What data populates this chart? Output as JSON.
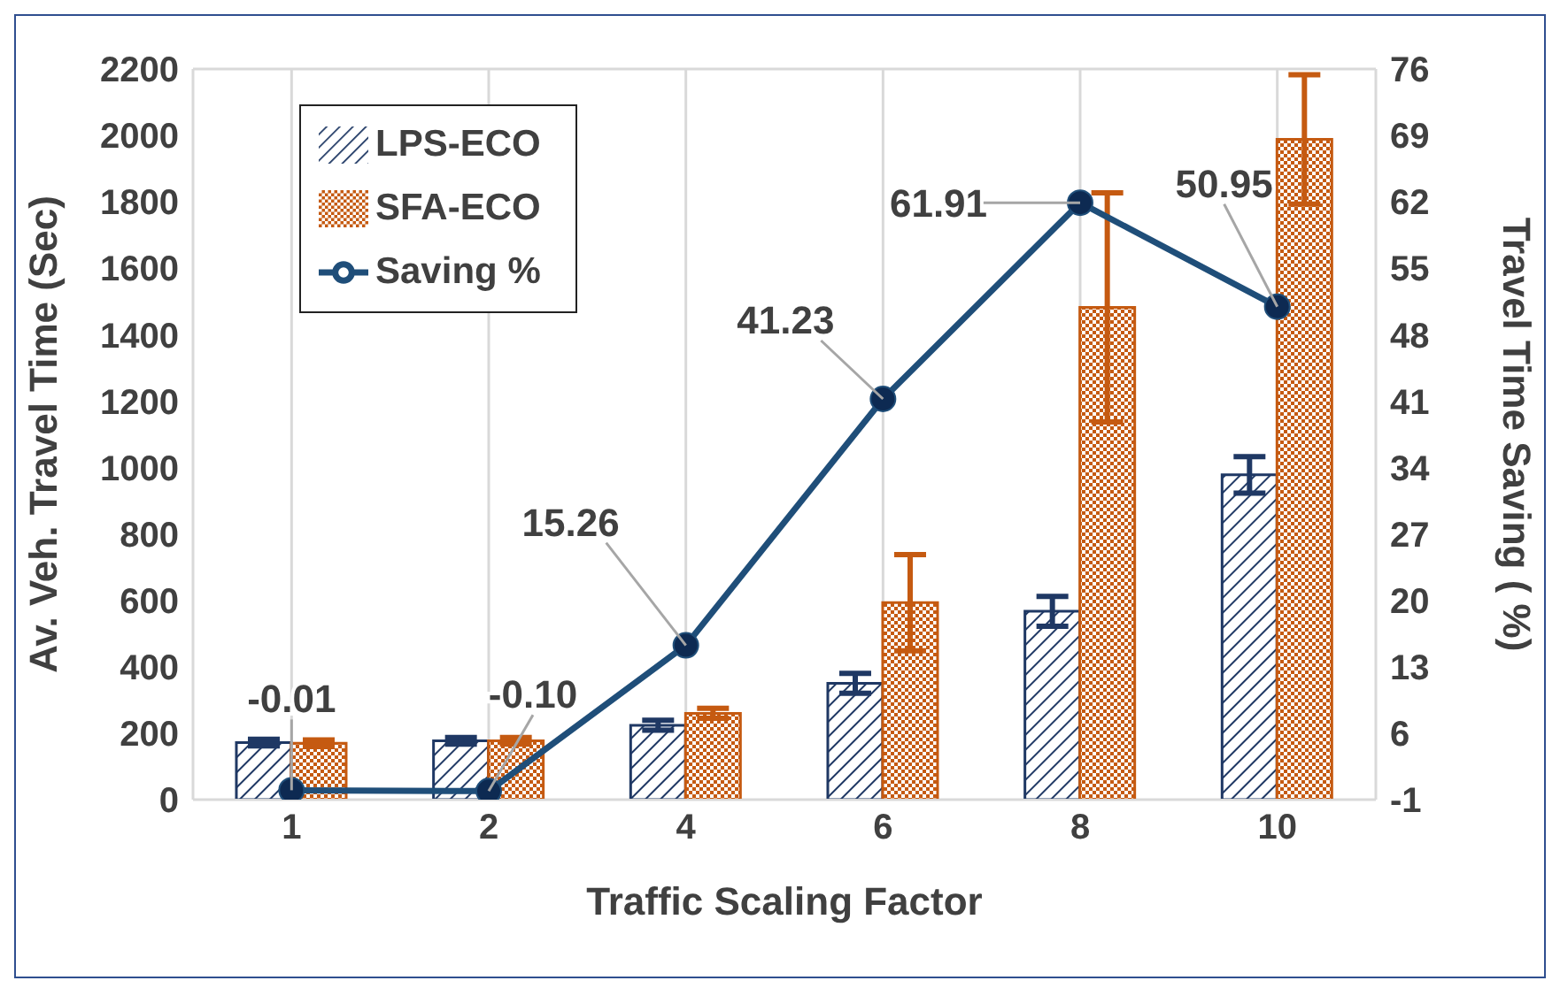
{
  "chart_data": {
    "type": "bar",
    "xlabel": "Traffic Scaling Factor",
    "ylabel": "Av. Veh. Travel Time (Sec)",
    "y2label": "Travel Time Saving ( %)",
    "categories": [
      "1",
      "2",
      "4",
      "6",
      "8",
      "10"
    ],
    "series": [
      {
        "name": "LPS-ECO",
        "color": "#1f3864",
        "values": [
          172,
          177,
          224,
          350,
          567,
          978
        ],
        "errors": [
          10,
          10,
          15,
          30,
          45,
          55
        ]
      },
      {
        "name": "SFA-ECO",
        "color": "#c55a11",
        "values": [
          170,
          177,
          260,
          593,
          1482,
          1988
        ],
        "errors": [
          10,
          10,
          15,
          145,
          345,
          195
        ]
      },
      {
        "name": "Saving %",
        "type": "line",
        "axis": "y2",
        "color": "#1f4e79",
        "values": [
          -0.01,
          -0.1,
          15.26,
          41.23,
          61.91,
          50.95
        ],
        "value_labels": [
          "-0.01",
          "-0.10",
          "15.26",
          "41.23",
          "61.91",
          "50.95"
        ]
      }
    ],
    "ylim": [
      0,
      2200
    ],
    "yticks": [
      0,
      200,
      400,
      600,
      800,
      1000,
      1200,
      1400,
      1600,
      1800,
      2000,
      2200
    ],
    "y2lim": [
      -1,
      76
    ],
    "y2ticks": [
      -1,
      6,
      13,
      20,
      27,
      34,
      41,
      48,
      55,
      62,
      69,
      76
    ],
    "grid": true,
    "legend": "top left",
    "marker": "circle"
  }
}
